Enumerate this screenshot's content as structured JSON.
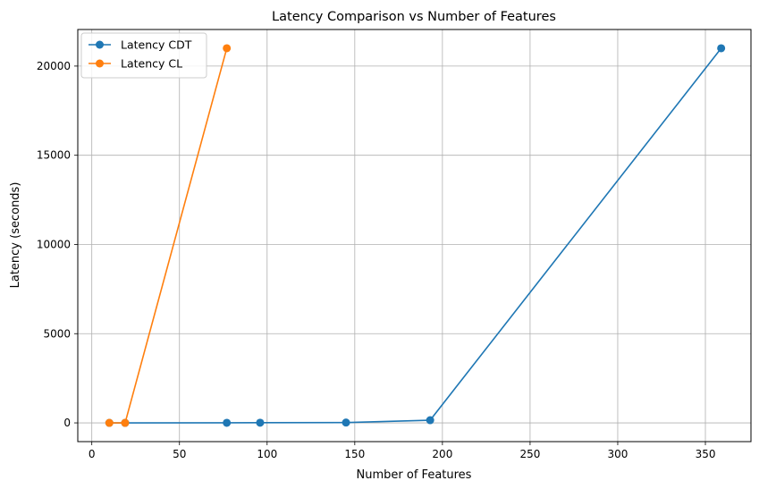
{
  "chart_data": {
    "type": "line",
    "title": "Latency Comparison vs Number of Features",
    "xlabel": "Number of Features",
    "ylabel": "Latency (seconds)",
    "xlim": [
      -8,
      376
    ],
    "ylim": [
      -1050,
      22050
    ],
    "xticks": [
      0,
      50,
      100,
      150,
      200,
      250,
      300,
      350
    ],
    "yticks": [
      0,
      5000,
      10000,
      15000,
      20000
    ],
    "grid": true,
    "legend_position": "top-left",
    "series": [
      {
        "name": "Latency CDT",
        "color": "#1f77b4",
        "x": [
          10,
          19,
          77,
          96,
          145,
          193,
          359
        ],
        "y": [
          0,
          0,
          5,
          10,
          20,
          150,
          21000
        ]
      },
      {
        "name": "Latency CL",
        "color": "#ff7f0e",
        "x": [
          10,
          19,
          77
        ],
        "y": [
          0,
          0,
          21000
        ]
      }
    ]
  }
}
